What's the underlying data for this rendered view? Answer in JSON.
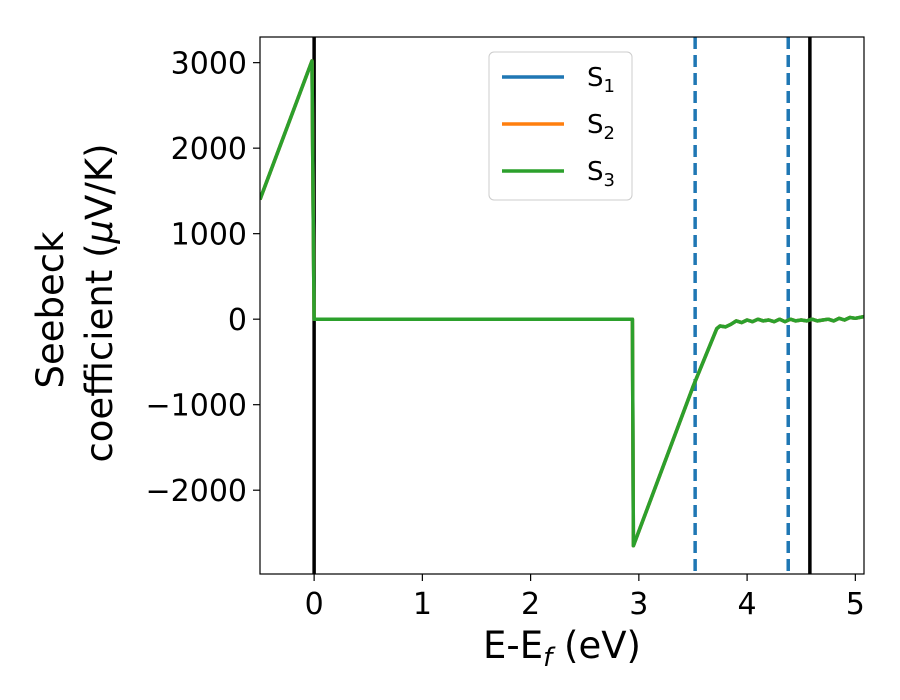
{
  "chart_data": {
    "type": "line",
    "xlabel": {
      "base": "E-E",
      "sub": "f",
      "rest": " (eV)"
    },
    "ylabel": {
      "line1": "Seebeck",
      "line2_pre": "coefficient  (",
      "mu": "μ",
      "line2_post": "V/K)"
    },
    "xlim": [
      -0.5,
      5.08
    ],
    "ylim": [
      -2980,
      3300
    ],
    "xticks": [
      {
        "value": 0,
        "label": "0"
      },
      {
        "value": 1,
        "label": "1"
      },
      {
        "value": 2,
        "label": "2"
      },
      {
        "value": 3,
        "label": "3"
      },
      {
        "value": 4,
        "label": "4"
      },
      {
        "value": 5,
        "label": "5"
      }
    ],
    "yticks": [
      {
        "value": 3000,
        "label": "3000"
      },
      {
        "value": 2000,
        "label": "2000"
      },
      {
        "value": 1000,
        "label": "1000"
      },
      {
        "value": 0,
        "label": "0"
      },
      {
        "value": -1000,
        "label": "−1000"
      },
      {
        "value": -2000,
        "label": "−2000"
      }
    ],
    "grid": false,
    "legend_position": "top-center",
    "series": [
      {
        "name": "S",
        "subscript": "1",
        "color": "#1f77b4",
        "x": [
          -0.5,
          -0.02,
          -0.01,
          0.0,
          2.94,
          2.95,
          3.5,
          3.72,
          3.75,
          3.8,
          3.85,
          3.9,
          3.95,
          4.0,
          4.05,
          4.1,
          4.15,
          4.2,
          4.25,
          4.3,
          4.35,
          4.4,
          4.45,
          4.5,
          4.55,
          4.6,
          4.65,
          4.7,
          4.75,
          4.8,
          4.85,
          4.9,
          4.95,
          5.0,
          5.08
        ],
        "y": [
          1400,
          3020,
          1500,
          0,
          0,
          -2650,
          -790,
          -110,
          -80,
          -90,
          -60,
          -20,
          -40,
          -10,
          -30,
          0,
          -20,
          -10,
          -30,
          0,
          -30,
          0,
          -20,
          -10,
          -20,
          0,
          -20,
          -10,
          0,
          -20,
          10,
          -10,
          20,
          10,
          30
        ]
      },
      {
        "name": "S",
        "subscript": "2",
        "color": "#ff7f0e",
        "x": [
          -0.5,
          -0.02,
          -0.01,
          0.0,
          2.94,
          2.95,
          3.5,
          3.72,
          3.75,
          3.8,
          3.85,
          3.9,
          3.95,
          4.0,
          4.05,
          4.1,
          4.15,
          4.2,
          4.25,
          4.3,
          4.35,
          4.4,
          4.45,
          4.5,
          4.55,
          4.6,
          4.65,
          4.7,
          4.75,
          4.8,
          4.85,
          4.9,
          4.95,
          5.0,
          5.08
        ],
        "y": [
          1400,
          3020,
          1500,
          0,
          0,
          -2650,
          -790,
          -110,
          -80,
          -90,
          -60,
          -20,
          -40,
          -10,
          -30,
          0,
          -20,
          -10,
          -30,
          0,
          -30,
          0,
          -20,
          -10,
          -20,
          0,
          -20,
          -10,
          0,
          -20,
          10,
          -10,
          20,
          10,
          30
        ]
      },
      {
        "name": "S",
        "subscript": "3",
        "color": "#2ca02c",
        "x": [
          -0.5,
          -0.02,
          -0.01,
          0.0,
          2.94,
          2.95,
          3.5,
          3.72,
          3.75,
          3.8,
          3.85,
          3.9,
          3.95,
          4.0,
          4.05,
          4.1,
          4.15,
          4.2,
          4.25,
          4.3,
          4.35,
          4.4,
          4.45,
          4.5,
          4.55,
          4.6,
          4.65,
          4.7,
          4.75,
          4.8,
          4.85,
          4.9,
          4.95,
          5.0,
          5.08
        ],
        "y": [
          1400,
          3020,
          1500,
          0,
          0,
          -2650,
          -790,
          -110,
          -80,
          -90,
          -60,
          -20,
          -40,
          -10,
          -30,
          0,
          -20,
          -10,
          -30,
          0,
          -30,
          0,
          -20,
          -10,
          -20,
          0,
          -20,
          -10,
          0,
          -20,
          10,
          -10,
          20,
          10,
          30
        ]
      }
    ],
    "vertical_lines": [
      {
        "x": 0.0,
        "style": "solid",
        "color": "#000000"
      },
      {
        "x": 3.52,
        "style": "dashed",
        "color": "#1f77b4"
      },
      {
        "x": 4.38,
        "style": "dashed",
        "color": "#1f77b4"
      },
      {
        "x": 4.58,
        "style": "solid",
        "color": "#000000"
      }
    ]
  }
}
